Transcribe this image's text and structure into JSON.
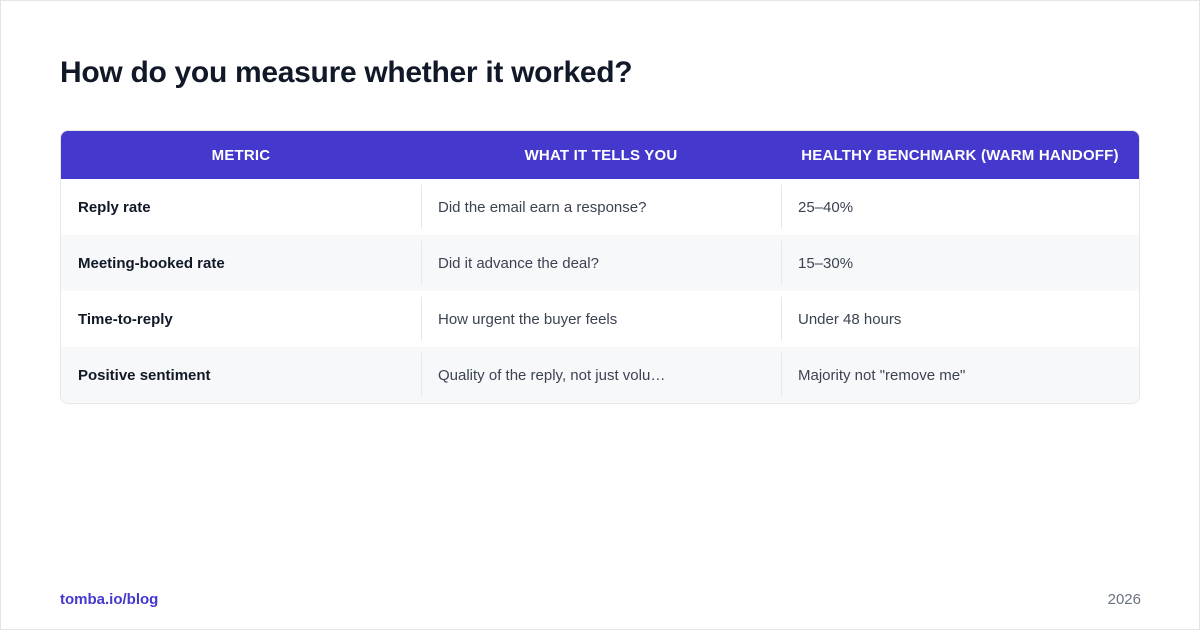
{
  "title": "How do you measure whether it worked?",
  "table": {
    "headers": [
      "METRIC",
      "WHAT IT TELLS YOU",
      "HEALTHY BENCHMARK (WARM HANDOFF)"
    ],
    "rows": [
      {
        "metric": "Reply rate",
        "meaning": "Did the email earn a response?",
        "benchmark": "25–40%"
      },
      {
        "metric": "Meeting-booked rate",
        "meaning": "Did it advance the deal?",
        "benchmark": "15–30%"
      },
      {
        "metric": "Time-to-reply",
        "meaning": "How urgent the buyer feels",
        "benchmark": "Under 48 hours"
      },
      {
        "metric": "Positive sentiment",
        "meaning": "Quality of the reply, not just volu…",
        "benchmark": "Majority not \"remove me\""
      }
    ]
  },
  "footer": {
    "link": "tomba.io/blog",
    "year": "2026"
  },
  "colors": {
    "header_bg": "#4438cd",
    "accent": "#4438cd",
    "title": "#111827",
    "row_alt": "#f7f8fa"
  }
}
